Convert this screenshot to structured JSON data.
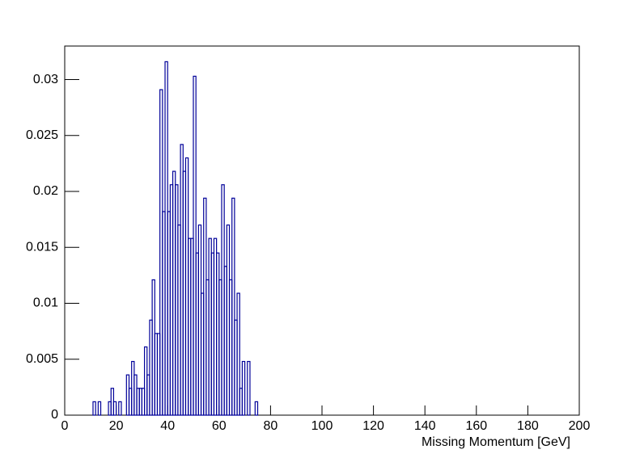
{
  "chart_data": {
    "type": "histogram",
    "x_label": "Missing Momentum [GeV]",
    "bins": [
      10,
      11,
      12,
      13,
      14,
      15,
      16,
      17,
      18,
      19,
      20,
      21,
      22,
      23,
      24,
      25,
      26,
      27,
      28,
      29,
      30,
      31,
      32,
      33,
      34,
      35,
      36,
      37,
      38,
      39,
      40,
      41,
      42,
      43,
      44,
      45,
      46,
      47,
      48,
      49,
      50,
      51,
      52,
      53,
      54,
      55,
      56,
      57,
      58,
      59,
      60,
      61,
      62,
      63,
      64,
      65,
      66,
      67,
      68,
      69,
      70,
      71,
      72,
      73,
      74,
      75,
      76
    ],
    "values": [
      0,
      0.0012,
      0,
      0.0012,
      0,
      0,
      0,
      0.0012,
      0.0024,
      0.0012,
      0,
      0.0012,
      0,
      0,
      0.0036,
      0.0024,
      0.0048,
      0.0036,
      0.0024,
      0.0024,
      0.0024,
      0.0061,
      0.0036,
      0.0085,
      0.0121,
      0.0073,
      0.0073,
      0.0291,
      0.0182,
      0.0316,
      0.0182,
      0.0206,
      0.0218,
      0.0206,
      0.017,
      0.0242,
      0.0218,
      0.023,
      0.0158,
      0.0158,
      0.0303,
      0.0145,
      0.017,
      0.0109,
      0.0194,
      0.0121,
      0.0158,
      0.0145,
      0.0158,
      0.0145,
      0.0121,
      0.0206,
      0.0133,
      0.017,
      0.0121,
      0.0194,
      0.0085,
      0.0109,
      0.0024,
      0.0048,
      0,
      0.0048,
      0,
      0,
      0.0012,
      0
    ],
    "color": "#000099",
    "xlim": [
      0,
      200
    ],
    "xticks": [
      0,
      20,
      40,
      60,
      80,
      100,
      120,
      140,
      160,
      180,
      200
    ],
    "ylim": [
      0,
      0.033
    ],
    "yticks": [
      0,
      0.005,
      0.01,
      0.015,
      0.02,
      0.025,
      0.03
    ]
  }
}
